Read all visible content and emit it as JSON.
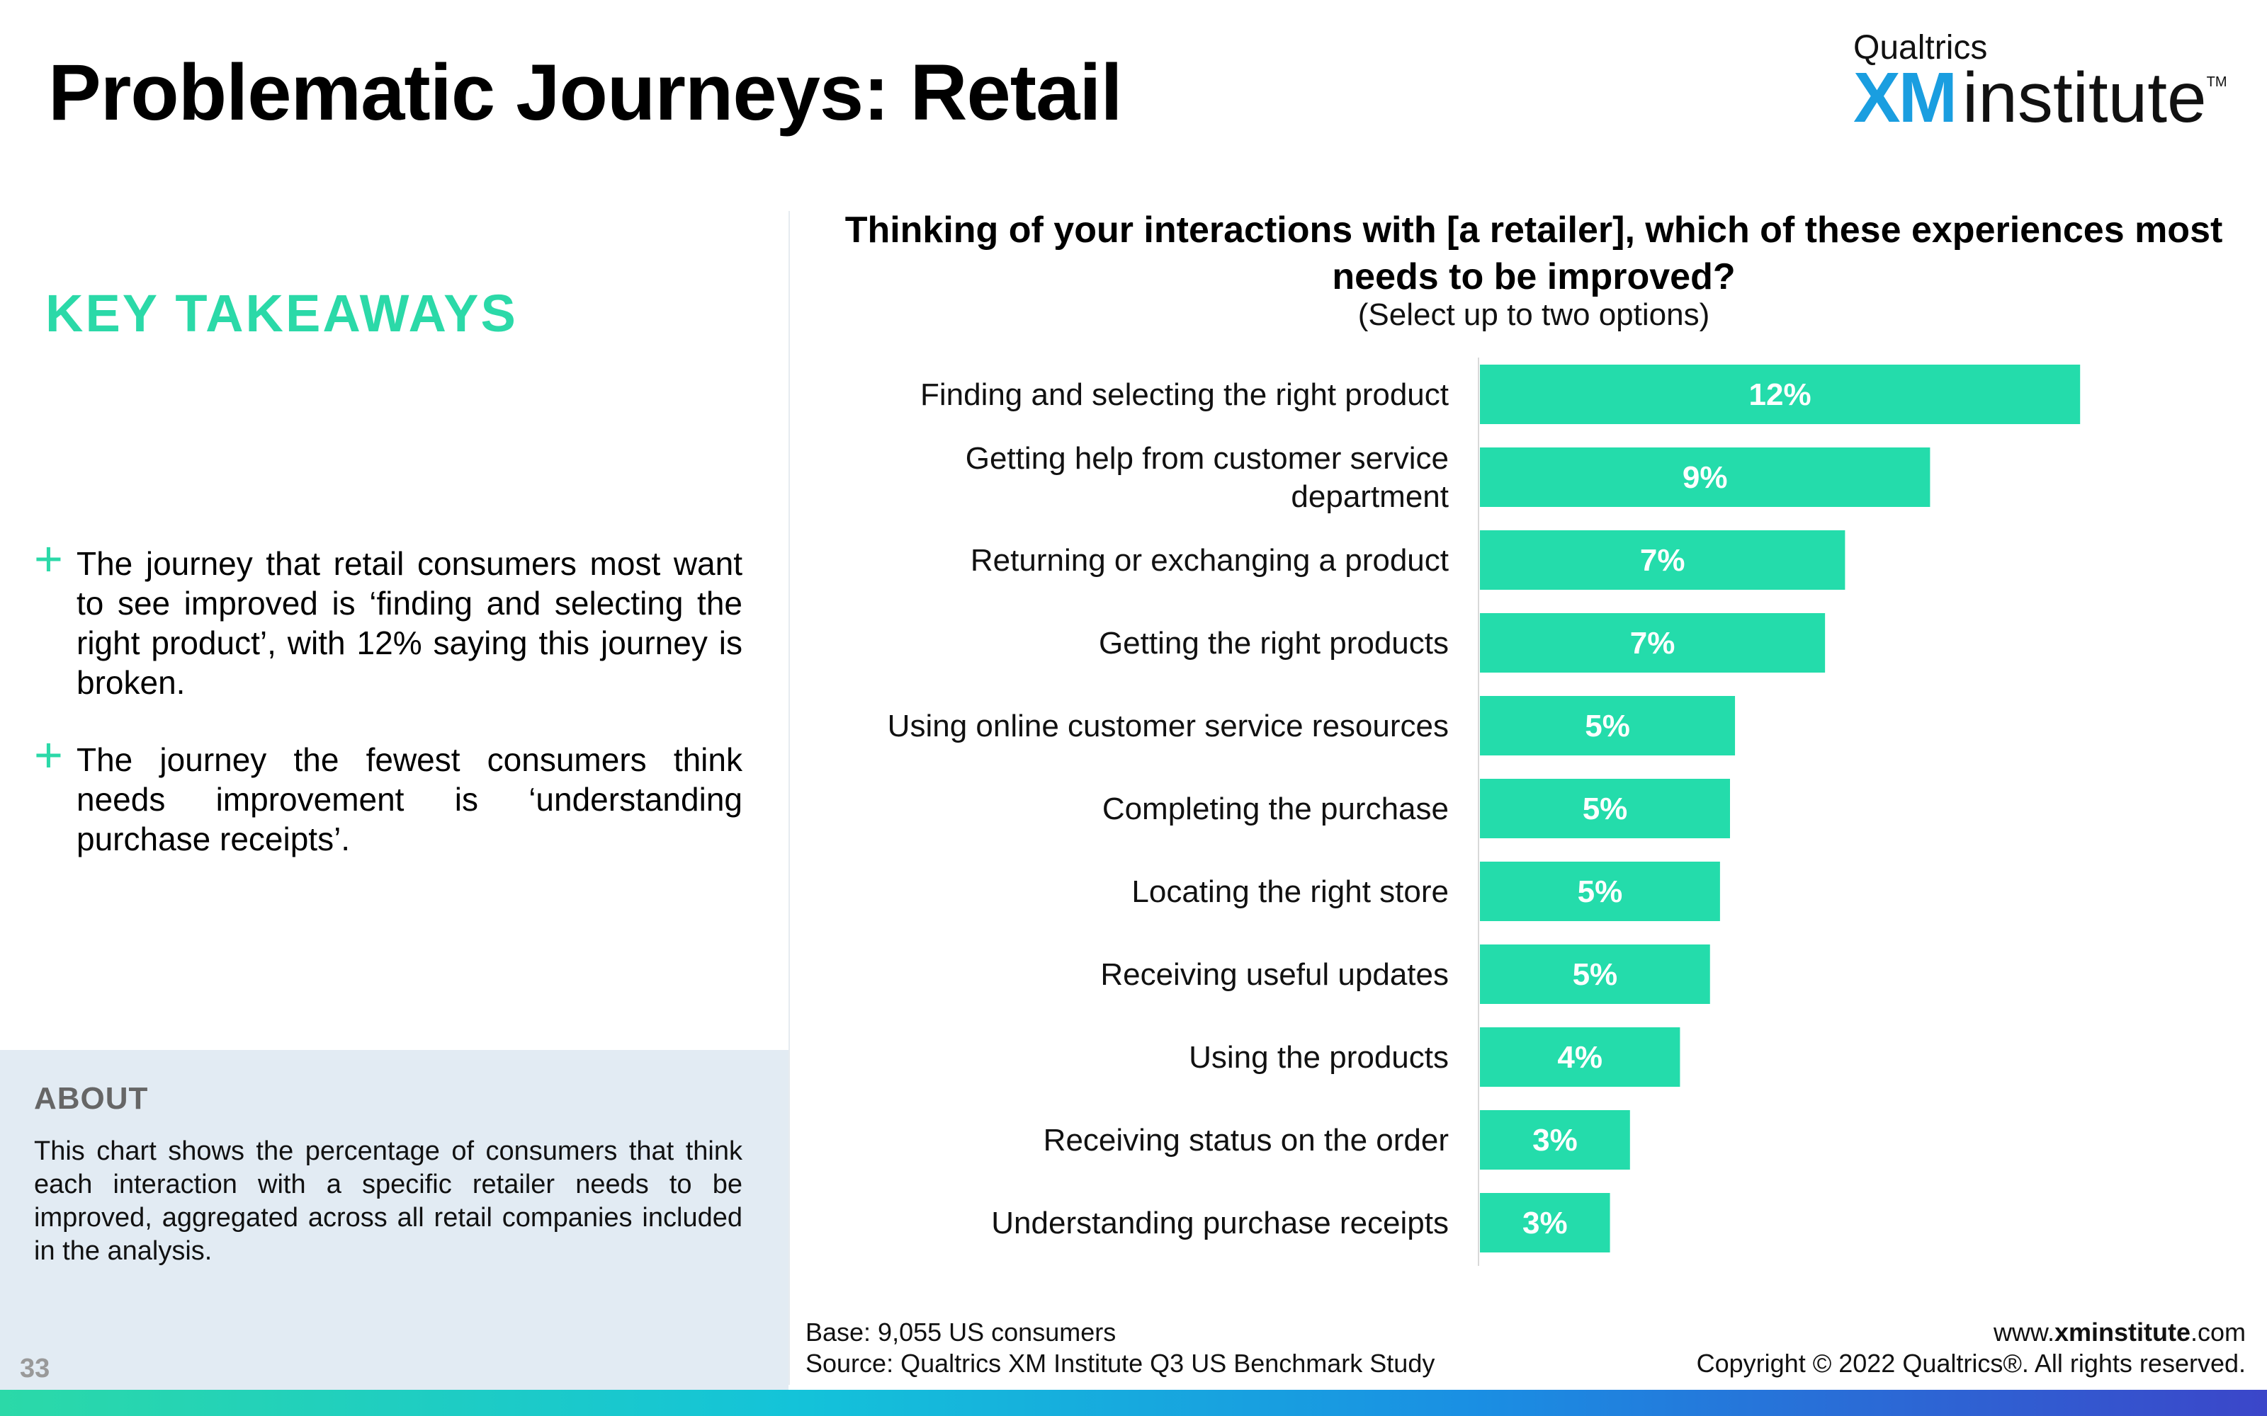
{
  "page": {
    "title": "Problematic Journeys: Retail",
    "page_number": "33"
  },
  "logo": {
    "top": "Qualtrics",
    "xm": "XM",
    "institute": "institute",
    "tm": "TM"
  },
  "takeaways": {
    "heading": "KEY TAKEAWAYS",
    "items": [
      "The journey that retail consumers most want to see improved is ‘finding and selecting the right product’, with 12% saying this journey is broken.",
      "The journey the fewest consumers think needs improvement is ‘understanding purchase receipts’."
    ]
  },
  "about": {
    "title": "ABOUT",
    "body": "This chart shows the percentage of consumers that think each interaction with a specific retailer needs to be improved, aggregated across all retail companies included in the analysis."
  },
  "footer": {
    "base": "Base: 9,055 US consumers",
    "source": "Source: Qualtrics XM Institute Q3 US Benchmark Study",
    "website_prefix": "www.",
    "website_bold": "xminstitute",
    "website_suffix": ".com",
    "copyright": "Copyright © 2022 Qualtrics®. All rights reserved."
  },
  "colors": {
    "accent": "#2bd9a8",
    "bar": "#24dcab",
    "bar_label": "#ffffff"
  },
  "chart_data": {
    "type": "bar",
    "orientation": "horizontal",
    "title": "Thinking of your interactions with [a retailer], which of these experiences most needs to be improved?",
    "subtitle": "(Select up to two options)",
    "categories": [
      [
        "Finding and selecting the right product"
      ],
      [
        "Getting help from customer service",
        "department"
      ],
      [
        "Returning or exchanging a product"
      ],
      [
        "Getting the right products"
      ],
      [
        "Using online customer service resources"
      ],
      [
        "Completing the purchase"
      ],
      [
        "Locating the right store"
      ],
      [
        "Receiving useful updates"
      ],
      [
        "Using the products"
      ],
      [
        "Receiving status on the order"
      ],
      [
        "Understanding purchase receipts"
      ]
    ],
    "values": [
      12.0,
      9.0,
      7.3,
      6.9,
      5.1,
      5.0,
      4.8,
      4.6,
      4.0,
      3.0,
      2.6
    ],
    "labels": [
      "12%",
      "9%",
      "7%",
      "7%",
      "5%",
      "5%",
      "5%",
      "5%",
      "4%",
      "3%",
      "3%"
    ],
    "xlim": [
      0,
      14
    ],
    "grid": false,
    "legend": "none"
  }
}
